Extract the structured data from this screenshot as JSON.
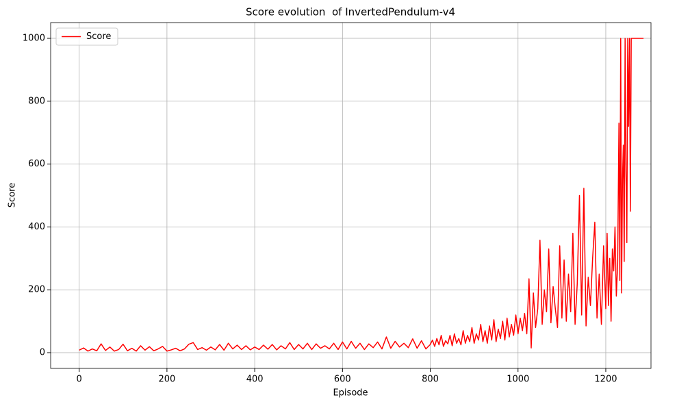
{
  "chart_data": {
    "type": "line",
    "title": "Score evolution  of InvertedPendulum-v4",
    "xlabel": "Episode",
    "ylabel": "Score",
    "x": [
      0,
      10,
      20,
      30,
      40,
      50,
      60,
      70,
      80,
      90,
      100,
      110,
      120,
      130,
      140,
      150,
      160,
      170,
      180,
      190,
      200,
      210,
      220,
      230,
      240,
      250,
      260,
      270,
      280,
      290,
      300,
      310,
      320,
      330,
      340,
      350,
      360,
      370,
      380,
      390,
      400,
      410,
      420,
      430,
      440,
      450,
      460,
      470,
      480,
      490,
      500,
      510,
      520,
      530,
      540,
      550,
      560,
      570,
      580,
      590,
      600,
      610,
      620,
      630,
      640,
      650,
      660,
      670,
      680,
      690,
      700,
      710,
      720,
      730,
      740,
      750,
      760,
      770,
      780,
      790,
      800,
      805,
      810,
      815,
      820,
      825,
      830,
      835,
      840,
      845,
      850,
      855,
      860,
      865,
      870,
      875,
      880,
      885,
      890,
      895,
      900,
      905,
      910,
      915,
      920,
      925,
      930,
      935,
      940,
      945,
      950,
      955,
      960,
      965,
      970,
      975,
      980,
      985,
      990,
      995,
      1000,
      1005,
      1010,
      1015,
      1020,
      1025,
      1030,
      1035,
      1040,
      1045,
      1050,
      1055,
      1060,
      1065,
      1070,
      1075,
      1080,
      1085,
      1090,
      1095,
      1100,
      1105,
      1110,
      1115,
      1120,
      1125,
      1130,
      1135,
      1140,
      1145,
      1150,
      1155,
      1160,
      1165,
      1170,
      1175,
      1180,
      1185,
      1190,
      1195,
      1200,
      1203,
      1206,
      1209,
      1212,
      1215,
      1218,
      1221,
      1224,
      1227,
      1230,
      1232,
      1234,
      1236,
      1238,
      1240,
      1242,
      1244,
      1246,
      1248,
      1250,
      1252,
      1254,
      1256,
      1258,
      1262,
      1270,
      1278,
      1286
    ],
    "series": [
      {
        "name": "Score",
        "color": "#ff0000",
        "values": [
          8,
          15,
          5,
          12,
          6,
          28,
          7,
          18,
          5,
          10,
          27,
          6,
          14,
          5,
          22,
          8,
          19,
          6,
          12,
          20,
          5,
          9,
          14,
          6,
          12,
          27,
          32,
          10,
          16,
          8,
          18,
          9,
          26,
          8,
          30,
          12,
          24,
          10,
          22,
          9,
          18,
          10,
          24,
          11,
          26,
          9,
          22,
          12,
          32,
          10,
          26,
          12,
          30,
          10,
          28,
          14,
          22,
          12,
          30,
          10,
          34,
          12,
          36,
          14,
          30,
          10,
          28,
          16,
          34,
          12,
          50,
          14,
          36,
          18,
          30,
          16,
          44,
          14,
          38,
          12,
          26,
          40,
          20,
          45,
          25,
          55,
          20,
          38,
          28,
          55,
          22,
          60,
          30,
          45,
          25,
          70,
          30,
          55,
          35,
          80,
          30,
          60,
          40,
          90,
          35,
          70,
          30,
          85,
          40,
          105,
          35,
          75,
          45,
          100,
          40,
          110,
          50,
          90,
          55,
          120,
          60,
          110,
          70,
          125,
          60,
          235,
          15,
          190,
          80,
          140,
          358,
          90,
          200,
          130,
          330,
          95,
          210,
          140,
          80,
          340,
          110,
          295,
          100,
          250,
          130,
          380,
          90,
          220,
          500,
          120,
          523,
          85,
          240,
          150,
          300,
          415,
          110,
          250,
          90,
          340,
          140,
          380,
          150,
          300,
          100,
          330,
          260,
          400,
          180,
          280,
          730,
          230,
          1000,
          190,
          550,
          660,
          290,
          1000,
          580,
          350,
          1000,
          720,
          1000,
          450,
          1000,
          1000,
          1000,
          1000,
          1000
        ]
      }
    ],
    "xlim": [
      -65,
      1303
    ],
    "ylim": [
      -50,
      1050
    ],
    "xticks": [
      0,
      200,
      400,
      600,
      800,
      1000,
      1200
    ],
    "yticks": [
      0,
      200,
      400,
      600,
      800,
      1000
    ],
    "grid": true,
    "legend": "upper left"
  }
}
